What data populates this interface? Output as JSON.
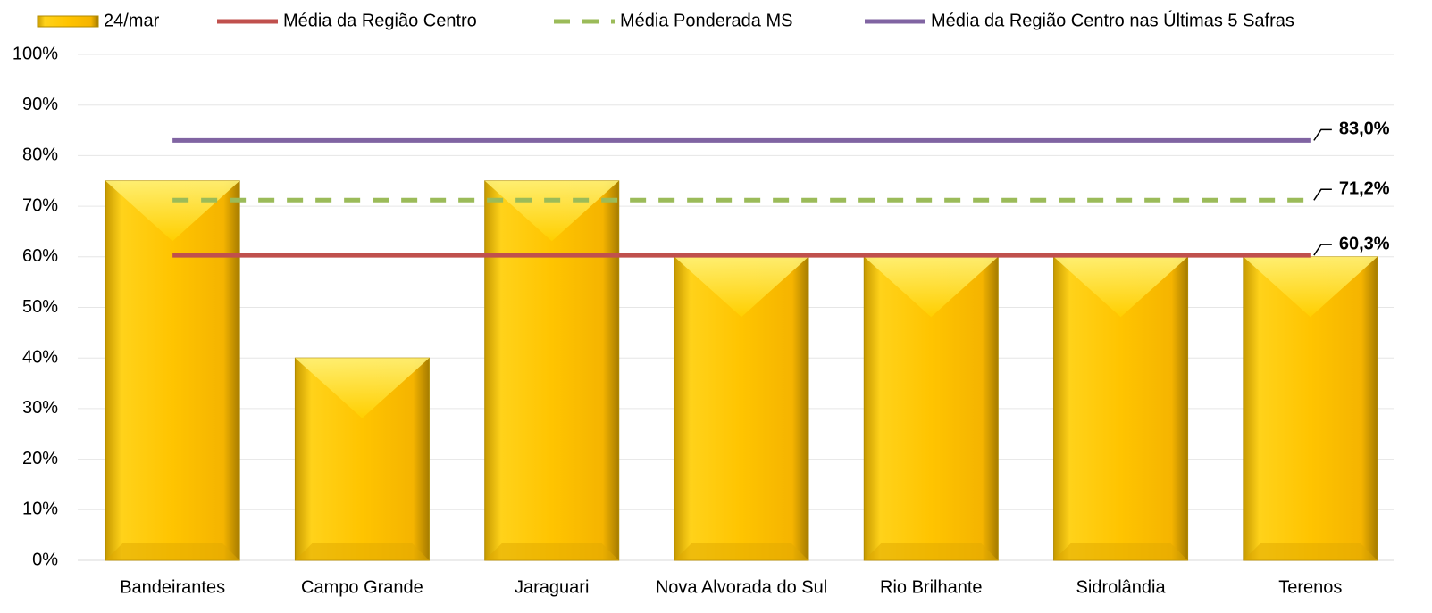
{
  "chart_data": {
    "type": "bar",
    "categories": [
      "Bandeirantes",
      "Campo Grande",
      "Jaraguari",
      "Nova Alvorada do Sul",
      "Rio Brilhante",
      "Sidrolândia",
      "Terenos"
    ],
    "series": [
      {
        "name": "24/mar",
        "type": "bar",
        "color": "#ffc000",
        "values": [
          75,
          40,
          75,
          60,
          60,
          60,
          60
        ]
      },
      {
        "name": "Média da Região Centro",
        "type": "line",
        "color": "#c0504d",
        "dash": false,
        "values": [
          60.3,
          60.3,
          60.3,
          60.3,
          60.3,
          60.3,
          60.3
        ],
        "value_labels": [
          null,
          null,
          null,
          null,
          null,
          null,
          "60,3%"
        ]
      },
      {
        "name": "Média Ponderada MS",
        "type": "line",
        "color": "#9bbb59",
        "dash": true,
        "values": [
          71.2,
          71.2,
          71.2,
          71.2,
          71.2,
          71.2,
          71.2
        ],
        "value_labels": [
          null,
          null,
          null,
          null,
          null,
          null,
          "71,2%"
        ]
      },
      {
        "name": "Média da Região Centro nas Últimas 5 Safras",
        "type": "line",
        "color": "#8064a2",
        "dash": false,
        "values": [
          83.0,
          83.0,
          83.0,
          83.0,
          83.0,
          83.0,
          83.0
        ],
        "value_labels": [
          null,
          null,
          null,
          null,
          null,
          null,
          "83,0%"
        ]
      }
    ],
    "ylim": [
      0,
      100
    ],
    "yticks": [
      {
        "value": 0,
        "label": "0%"
      },
      {
        "value": 10,
        "label": "10%"
      },
      {
        "value": 20,
        "label": "20%"
      },
      {
        "value": 30,
        "label": "30%"
      },
      {
        "value": 40,
        "label": "40%"
      },
      {
        "value": 50,
        "label": "50%"
      },
      {
        "value": 60,
        "label": "60%"
      },
      {
        "value": 70,
        "label": "70%"
      },
      {
        "value": 80,
        "label": "80%"
      },
      {
        "value": 90,
        "label": "90%"
      },
      {
        "value": 100,
        "label": "100%"
      }
    ],
    "grid": true,
    "legend": "top"
  }
}
